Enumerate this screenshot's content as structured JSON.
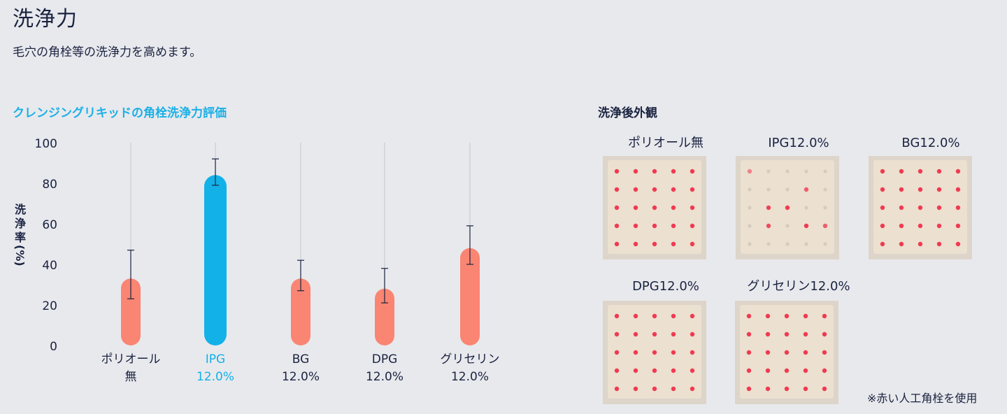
{
  "page": {
    "title": "洗浄力",
    "subtitle": "毛穴の角栓等の洗浄力を高めます。"
  },
  "chart_data": {
    "type": "bar",
    "title": "クレンジングリキッドの角栓洗浄力評価",
    "ylabel": "洗浄率(%)",
    "ylabel_chars": [
      "洗",
      "浄",
      "率",
      "(%)"
    ],
    "ylim": [
      0,
      100
    ],
    "yticks": [
      "0",
      "20",
      "40",
      "60",
      "80",
      "100"
    ],
    "categories": [
      {
        "lines": [
          "ポリオール",
          "無"
        ],
        "value": 33,
        "err_low": 23,
        "err_high": 47,
        "color": "#fa8572",
        "label_color": "#1a2340"
      },
      {
        "lines": [
          "IPG",
          "12.0%"
        ],
        "value": 84,
        "err_low": 79,
        "err_high": 92,
        "color": "#12b1e8",
        "label_color": "#12b1e8"
      },
      {
        "lines": [
          "BG",
          "12.0%"
        ],
        "value": 33,
        "err_low": 27,
        "err_high": 42,
        "color": "#fa8572",
        "label_color": "#1a2340"
      },
      {
        "lines": [
          "DPG",
          "12.0%"
        ],
        "value": 28,
        "err_low": 21,
        "err_high": 38,
        "color": "#fa8572",
        "label_color": "#1a2340"
      },
      {
        "lines": [
          "グリセリン",
          "12.0%"
        ],
        "value": 48,
        "err_low": 40,
        "err_high": 59,
        "color": "#fa8572",
        "label_color": "#1a2340"
      }
    ],
    "grid": false
  },
  "photos": {
    "title": "洗浄後外観",
    "items": [
      {
        "label": "ポリオール無",
        "dots": "heavy"
      },
      {
        "label": "IPG12.0%",
        "dots": "light"
      },
      {
        "label": "BG12.0%",
        "dots": "heavy"
      },
      {
        "label": "DPG12.0%",
        "dots": "heavy"
      },
      {
        "label": "グリセリン12.0%",
        "dots": "heavy"
      }
    ],
    "note": "※赤い人工角栓を使用"
  },
  "colors": {
    "background": "#e8e9ed",
    "accent": "#1bb0e6",
    "bar": "#fa8572",
    "highlight_bar": "#12b1e8",
    "dot": "#f0304a",
    "tile": "#ece0d0"
  }
}
